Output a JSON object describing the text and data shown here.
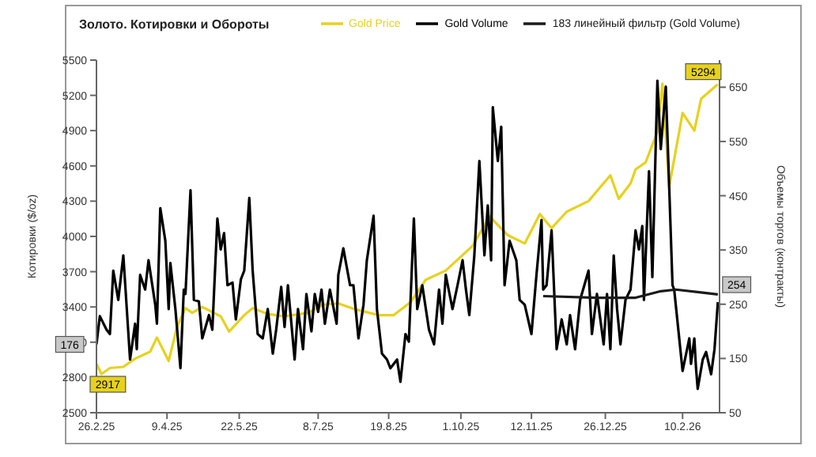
{
  "chart_data": {
    "type": "line",
    "title": "Золото. Котировки и Обороты",
    "ylabel": "Котировки ($/oz)",
    "y2label": "Объемы торгов (контракты)",
    "legend": "top",
    "grid": false,
    "marker": "none",
    "xlim": [
      "2025-02-26",
      "2026-03-04"
    ],
    "xticks": [
      {
        "value": "2025-02-26",
        "label": "26.2.25"
      },
      {
        "value": "2025-04-09",
        "label": "9.4.25"
      },
      {
        "value": "2025-05-22",
        "label": "22.5.25"
      },
      {
        "value": "2025-07-08",
        "label": "8.7.25"
      },
      {
        "value": "2025-08-19",
        "label": "19.8.25"
      },
      {
        "value": "2025-10-01",
        "label": "1.10.25"
      },
      {
        "value": "2025-11-12",
        "label": "12.11.25"
      },
      {
        "value": "2025-12-26",
        "label": "26.12.25"
      },
      {
        "value": "2026-02-10",
        "label": "10.2.26"
      }
    ],
    "ylim": [
      2500,
      5500
    ],
    "yticks": [
      2500,
      2800,
      3100,
      3400,
      3700,
      4000,
      4300,
      4600,
      4900,
      5200,
      5500
    ],
    "y2lim": [
      50,
      700
    ],
    "y2ticks": [
      50,
      150,
      250,
      350,
      450,
      550,
      650
    ],
    "series": [
      {
        "name": "Gold Price",
        "color": "#e6d21e",
        "x": [
          "2025-02-26",
          "2025-03-01",
          "2025-03-06",
          "2025-03-14",
          "2025-03-21",
          "2025-03-30",
          "2025-04-03",
          "2025-04-10",
          "2025-04-15",
          "2025-04-20",
          "2025-04-24",
          "2025-04-30",
          "2025-05-11",
          "2025-05-16",
          "2025-05-25",
          "2025-05-30",
          "2025-06-08",
          "2025-06-18",
          "2025-07-02",
          "2025-07-11",
          "2025-07-20",
          "2025-07-30",
          "2025-08-13",
          "2025-08-22",
          "2025-09-01",
          "2025-09-10",
          "2025-09-22",
          "2025-10-08",
          "2025-10-18",
          "2025-10-29",
          "2025-11-08",
          "2025-11-17",
          "2025-11-24",
          "2025-12-03",
          "2025-12-16",
          "2025-12-29",
          "2026-01-03",
          "2026-01-10",
          "2026-01-13",
          "2026-01-19",
          "2026-01-26",
          "2026-01-29",
          "2026-02-02",
          "2026-02-10",
          "2026-02-17",
          "2026-02-21",
          "2026-03-01",
          "2026-03-03"
        ],
        "values": [
          2917,
          2830,
          2880,
          2890,
          2960,
          3020,
          3140,
          2940,
          3230,
          3390,
          3350,
          3400,
          3320,
          3190,
          3330,
          3390,
          3340,
          3320,
          3350,
          3420,
          3430,
          3380,
          3330,
          3330,
          3440,
          3630,
          3710,
          3920,
          4170,
          4010,
          3940,
          4190,
          4070,
          4210,
          4300,
          4520,
          4320,
          4450,
          4570,
          4630,
          4890,
          5300,
          4420,
          5050,
          4900,
          5170,
          5270,
          5294
        ],
        "value_labels": [
          "2917",
          null,
          null,
          null,
          null,
          null,
          null,
          null,
          null,
          null,
          null,
          null,
          null,
          null,
          null,
          null,
          null,
          null,
          null,
          null,
          null,
          null,
          null,
          null,
          null,
          null,
          null,
          null,
          null,
          null,
          null,
          null,
          null,
          null,
          null,
          null,
          null,
          null,
          null,
          null,
          null,
          null,
          null,
          null,
          null,
          null,
          null,
          "5294"
        ]
      },
      {
        "name": "Gold Volume",
        "color": "#000000",
        "axis": "y2",
        "x": [
          "2025-02-26",
          "2025-02-28",
          "2025-03-04",
          "2025-03-06",
          "2025-03-08",
          "2025-03-11",
          "2025-03-14",
          "2025-03-18",
          "2025-03-21",
          "2025-03-22",
          "2025-03-24",
          "2025-03-27",
          "2025-03-29",
          "2025-04-02",
          "2025-04-03",
          "2025-04-05",
          "2025-04-08",
          "2025-04-10",
          "2025-04-11",
          "2025-04-14",
          "2025-04-17",
          "2025-04-19",
          "2025-04-20",
          "2025-04-23",
          "2025-04-25",
          "2025-04-28",
          "2025-04-30",
          "2025-05-04",
          "2025-05-06",
          "2025-05-09",
          "2025-05-11",
          "2025-05-13",
          "2025-05-15",
          "2025-05-18",
          "2025-05-20",
          "2025-05-23",
          "2025-05-25",
          "2025-05-28",
          "2025-05-30",
          "2025-06-02",
          "2025-06-05",
          "2025-06-08",
          "2025-06-11",
          "2025-06-13",
          "2025-06-16",
          "2025-06-18",
          "2025-06-20",
          "2025-06-24",
          "2025-06-26",
          "2025-06-29",
          "2025-07-01",
          "2025-07-04",
          "2025-07-06",
          "2025-07-08",
          "2025-07-10",
          "2025-07-12",
          "2025-07-15",
          "2025-07-19",
          "2025-07-20",
          "2025-07-23",
          "2025-07-27",
          "2025-07-29",
          "2025-08-01",
          "2025-08-04",
          "2025-08-06",
          "2025-08-10",
          "2025-08-12",
          "2025-08-15",
          "2025-08-18",
          "2025-08-20",
          "2025-08-24",
          "2025-08-26",
          "2025-08-29",
          "2025-08-31",
          "2025-09-03",
          "2025-09-05",
          "2025-09-08",
          "2025-09-12",
          "2025-09-15",
          "2025-09-18",
          "2025-09-20",
          "2025-09-22",
          "2025-09-26",
          "2025-09-29",
          "2025-10-02",
          "2025-10-04",
          "2025-10-06",
          "2025-10-09",
          "2025-10-12",
          "2025-10-15",
          "2025-10-17",
          "2025-10-19",
          "2025-10-20",
          "2025-10-23",
          "2025-10-25",
          "2025-10-27",
          "2025-10-30",
          "2025-11-03",
          "2025-11-05",
          "2025-11-08",
          "2025-11-12",
          "2025-11-15",
          "2025-11-18",
          "2025-11-19",
          "2025-11-21",
          "2025-11-24",
          "2025-11-27",
          "2025-11-30",
          "2025-12-03",
          "2025-12-05",
          "2025-12-08",
          "2025-12-11",
          "2025-12-16",
          "2025-12-18",
          "2025-12-21",
          "2025-12-25",
          "2025-12-27",
          "2025-12-29",
          "2025-12-31",
          "2026-01-02",
          "2026-01-04",
          "2026-01-07",
          "2026-01-10",
          "2026-01-13",
          "2026-01-15",
          "2026-01-17",
          "2026-01-18",
          "2026-01-21",
          "2026-01-23",
          "2026-01-26",
          "2026-01-28",
          "2026-01-31",
          "2026-02-04",
          "2026-02-05",
          "2026-02-10",
          "2026-02-14",
          "2026-02-15",
          "2026-02-17",
          "2026-02-18",
          "2026-02-19",
          "2026-02-22",
          "2026-02-24",
          "2026-02-27",
          "2026-03-01",
          "2026-03-03"
        ],
        "values": [
          176,
          228,
          203,
          195,
          312,
          258,
          340,
          148,
          214,
          167,
          304,
          277,
          331,
          249,
          214,
          427,
          367,
          241,
          326,
          241,
          132,
          277,
          269,
          460,
          258,
          255,
          187,
          230,
          203,
          408,
          351,
          381,
          285,
          290,
          222,
          296,
          312,
          446,
          312,
          195,
          187,
          241,
          159,
          203,
          282,
          208,
          285,
          148,
          241,
          167,
          269,
          200,
          269,
          236,
          277,
          214,
          277,
          214,
          304,
          353,
          285,
          285,
          187,
          249,
          331,
          413,
          241,
          159,
          148,
          132,
          148,
          107,
          195,
          181,
          408,
          241,
          285,
          203,
          176,
          277,
          214,
          304,
          241,
          285,
          331,
          277,
          230,
          340,
          514,
          340,
          432,
          331,
          613,
          514,
          577,
          285,
          367,
          331,
          258,
          249,
          195,
          304,
          405,
          277,
          285,
          386,
          167,
          222,
          176,
          230,
          167,
          258,
          312,
          195,
          269,
          176,
          269,
          167,
          340,
          241,
          176,
          258,
          277,
          386,
          351,
          394,
          258,
          495,
          300,
          662,
          536,
          651,
          285,
          277,
          127,
          187,
          140,
          187,
          132,
          94,
          148,
          162,
          121,
          167,
          254
        ],
        "value_labels": [
          "176",
          null,
          null,
          null,
          null,
          null,
          null,
          null,
          null,
          null,
          null,
          null,
          null,
          null,
          null,
          null,
          null,
          null,
          null,
          null,
          null,
          null,
          null,
          null,
          null,
          null,
          null,
          null,
          null,
          null,
          null,
          null,
          null,
          null,
          null,
          null,
          null,
          null,
          null,
          null,
          null,
          null,
          null,
          null,
          null,
          null,
          null,
          null,
          null,
          null,
          null,
          null,
          null,
          null,
          null,
          null,
          null,
          null,
          null,
          null,
          null,
          null,
          null,
          null,
          null,
          null,
          null,
          null,
          null,
          null,
          null,
          null,
          null,
          null,
          null,
          null,
          null,
          null,
          null,
          null,
          null,
          null,
          null,
          null,
          null,
          null,
          null,
          null,
          null,
          null,
          null,
          null,
          null,
          null,
          null,
          null,
          null,
          null,
          null,
          null,
          null,
          null,
          null,
          null,
          null,
          null,
          null,
          null,
          null,
          null,
          null,
          null,
          null,
          null,
          null,
          null,
          null,
          null,
          null,
          null,
          null,
          null,
          null,
          null,
          null,
          null,
          null,
          null,
          null,
          null,
          null,
          null,
          null,
          null,
          null,
          null,
          null,
          null,
          null,
          null,
          null,
          null,
          null,
          null,
          "254"
        ]
      },
      {
        "name": "183 линейный фильтр (Gold Volume)",
        "color": "#1a1a1a",
        "axis": "y2",
        "x": [
          "2025-11-19",
          "2025-12-21",
          "2026-01-13",
          "2026-01-28",
          "2026-02-06",
          "2026-02-20",
          "2026-03-03"
        ],
        "values": [
          265,
          262,
          262,
          274,
          277,
          272,
          268
        ]
      }
    ]
  }
}
